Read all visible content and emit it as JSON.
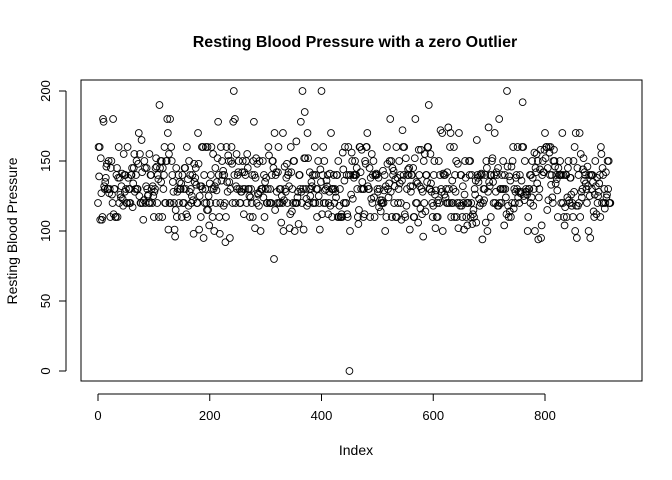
{
  "chart_data": {
    "type": "scatter",
    "title": "Resting Blood Pressure with a zero Outlier",
    "xlabel": "Index",
    "ylabel": "Resting Blood Pressure",
    "xlim": [
      0,
      920
    ],
    "ylim": [
      0,
      200
    ],
    "xticks": [
      0,
      200,
      400,
      600,
      800
    ],
    "yticks": [
      0,
      50,
      100,
      150,
      200
    ],
    "xtick_labels": [
      "0",
      "200",
      "400",
      "600",
      "800"
    ],
    "ytick_labels": [
      "0",
      "50",
      "100",
      "150",
      "200"
    ],
    "grid": false,
    "marker": "open-circle",
    "color": "#000000",
    "n_points": 918,
    "seed": 7,
    "value_levels": [
      94,
      95,
      96,
      98,
      100,
      101,
      102,
      104,
      105,
      106,
      108,
      110,
      112,
      113,
      114,
      115,
      116,
      117,
      118,
      120,
      122,
      123,
      124,
      125,
      126,
      127,
      128,
      129,
      130,
      132,
      133,
      134,
      135,
      136,
      137,
      138,
      139,
      140,
      141,
      142,
      143,
      144,
      145,
      146,
      148,
      150,
      152,
      154,
      155,
      156,
      158,
      160,
      164,
      165,
      170,
      172,
      174,
      178,
      180,
      185,
      190,
      192,
      200
    ],
    "value_weights": [
      2,
      4,
      1,
      2,
      8,
      2,
      2,
      3,
      3,
      2,
      5,
      40,
      8,
      1,
      2,
      5,
      2,
      2,
      12,
      80,
      10,
      2,
      8,
      15,
      8,
      3,
      20,
      3,
      70,
      15,
      2,
      8,
      15,
      8,
      2,
      15,
      3,
      60,
      3,
      12,
      2,
      4,
      20,
      4,
      8,
      40,
      8,
      2,
      10,
      3,
      6,
      30,
      1,
      2,
      10,
      2,
      1,
      3,
      6,
      1,
      3,
      1,
      4
    ],
    "fixed_points": [
      {
        "x": 110,
        "y": 190
      },
      {
        "x": 243,
        "y": 200
      },
      {
        "x": 315,
        "y": 80
      },
      {
        "x": 366,
        "y": 200
      },
      {
        "x": 370,
        "y": 185
      },
      {
        "x": 400,
        "y": 200
      },
      {
        "x": 450,
        "y": 0
      },
      {
        "x": 592,
        "y": 190
      },
      {
        "x": 732,
        "y": 200
      },
      {
        "x": 760,
        "y": 192
      },
      {
        "x": 228,
        "y": 92
      },
      {
        "x": 788,
        "y": 94
      },
      {
        "x": 688,
        "y": 94
      }
    ]
  }
}
